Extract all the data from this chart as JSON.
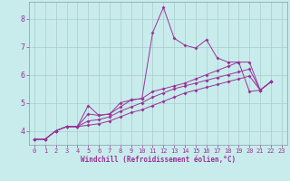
{
  "xlabel": "Windchill (Refroidissement éolien,°C)",
  "background_color": "#c8ecec",
  "line_color": "#993399",
  "grid_color": "#aacccc",
  "spine_color": "#8899aa",
  "xlim": [
    -0.5,
    23.5
  ],
  "ylim": [
    3.5,
    8.6
  ],
  "xticks": [
    0,
    1,
    2,
    3,
    4,
    5,
    6,
    7,
    8,
    9,
    10,
    11,
    12,
    13,
    14,
    15,
    16,
    17,
    18,
    19,
    20,
    21,
    22,
    23
  ],
  "yticks": [
    4,
    5,
    6,
    7,
    8
  ],
  "series": [
    [
      3.7,
      3.7,
      4.0,
      4.15,
      4.15,
      4.9,
      4.55,
      4.6,
      5.0,
      5.1,
      5.15,
      7.5,
      8.4,
      7.3,
      7.05,
      6.95,
      7.25,
      6.6,
      6.45,
      6.45,
      5.4,
      5.45,
      5.75
    ],
    [
      3.7,
      3.7,
      4.0,
      4.15,
      4.15,
      4.6,
      4.55,
      4.6,
      4.85,
      5.1,
      5.15,
      5.4,
      5.5,
      5.6,
      5.7,
      5.85,
      6.0,
      6.15,
      6.3,
      6.45,
      6.45,
      5.45,
      5.75
    ],
    [
      3.7,
      3.7,
      4.0,
      4.15,
      4.15,
      4.35,
      4.4,
      4.5,
      4.7,
      4.85,
      5.0,
      5.2,
      5.35,
      5.5,
      5.6,
      5.7,
      5.8,
      5.9,
      6.0,
      6.1,
      6.2,
      5.45,
      5.75
    ],
    [
      3.7,
      3.7,
      4.0,
      4.15,
      4.15,
      4.2,
      4.25,
      4.35,
      4.5,
      4.65,
      4.75,
      4.9,
      5.05,
      5.2,
      5.35,
      5.45,
      5.55,
      5.65,
      5.75,
      5.85,
      5.95,
      5.45,
      5.75
    ]
  ]
}
